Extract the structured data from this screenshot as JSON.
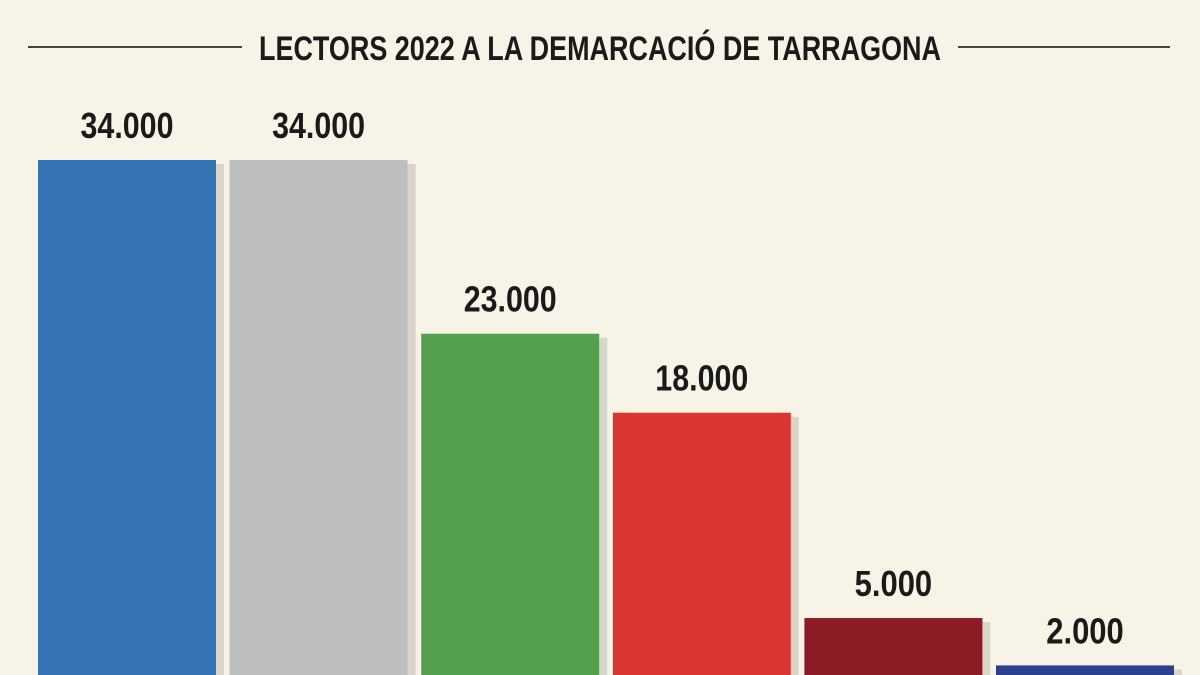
{
  "chart_data": {
    "type": "bar",
    "title": "LECTORS 2022 A LA DEMARCACIÓ DE TARRAGONA",
    "categories": [
      null,
      null,
      null,
      null,
      null,
      null
    ],
    "values": [
      34000,
      34000,
      23000,
      18000,
      5000,
      2000
    ],
    "value_labels": [
      "34.000",
      "34.000",
      "23.000",
      "18.000",
      "5.000",
      "2.000"
    ],
    "colors": [
      "#3574b5",
      "#bdbec0",
      "#55a04f",
      "#db3732",
      "#8d1b25",
      "#2c3f8f"
    ]
  }
}
